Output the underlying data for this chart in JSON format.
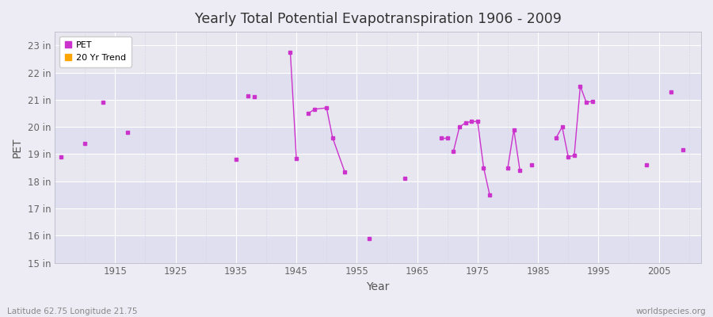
{
  "title": "Yearly Total Potential Evapotranspiration 1906 - 2009",
  "xlabel": "Year",
  "ylabel": "PET",
  "subtitle_left": "Latitude 62.75 Longitude 21.75",
  "subtitle_right": "worldspecies.org",
  "xlim": [
    1905,
    2012
  ],
  "ylim": [
    15,
    23.5
  ],
  "yticks": [
    15,
    16,
    17,
    18,
    19,
    20,
    21,
    22,
    23
  ],
  "ytick_labels": [
    "15 in",
    "16 in",
    "17 in",
    "18 in",
    "19 in",
    "20 in",
    "21 in",
    "22 in",
    "23 in"
  ],
  "xticks": [
    1915,
    1925,
    1935,
    1945,
    1955,
    1965,
    1975,
    1985,
    1995,
    2005
  ],
  "background_color": "#edecf4",
  "plot_bg_color": "#e8e7f0",
  "band_colors": [
    "#e0dff0",
    "#e8e7f0"
  ],
  "grid_major_color": "#ffffff",
  "grid_minor_color": "#d8d7e8",
  "pet_color": "#cc33cc",
  "trend_color": "#ffa500",
  "isolated_points": [
    [
      1906,
      18.9
    ],
    [
      1910,
      19.4
    ],
    [
      1913,
      20.9
    ],
    [
      1917,
      19.8
    ],
    [
      1935,
      18.8
    ],
    [
      1937,
      21.15
    ],
    [
      1938,
      21.1
    ],
    [
      1957,
      15.9
    ],
    [
      1963,
      18.1
    ],
    [
      1984,
      18.6
    ],
    [
      2003,
      18.6
    ],
    [
      2007,
      21.3
    ],
    [
      2009,
      19.15
    ]
  ],
  "connected_segments": [
    [
      [
        1944,
        22.75
      ],
      [
        1945,
        18.85
      ]
    ],
    [
      [
        1947,
        20.5
      ],
      [
        1948,
        20.65
      ],
      [
        1950,
        20.7
      ],
      [
        1951,
        19.6
      ],
      [
        1953,
        18.35
      ]
    ],
    [
      [
        1969,
        19.6
      ],
      [
        1970,
        19.6
      ]
    ],
    [
      [
        1971,
        19.1
      ],
      [
        1972,
        20.0
      ],
      [
        1973,
        20.15
      ],
      [
        1974,
        20.2
      ],
      [
        1975,
        20.2
      ],
      [
        1976,
        18.5
      ],
      [
        1977,
        17.5
      ]
    ],
    [
      [
        1980,
        18.5
      ],
      [
        1981,
        19.9
      ],
      [
        1982,
        18.4
      ]
    ],
    [
      [
        1988,
        19.6
      ],
      [
        1989,
        20.0
      ],
      [
        1990,
        18.9
      ],
      [
        1991,
        18.95
      ],
      [
        1992,
        21.5
      ],
      [
        1993,
        20.9
      ],
      [
        1994,
        20.95
      ]
    ]
  ]
}
